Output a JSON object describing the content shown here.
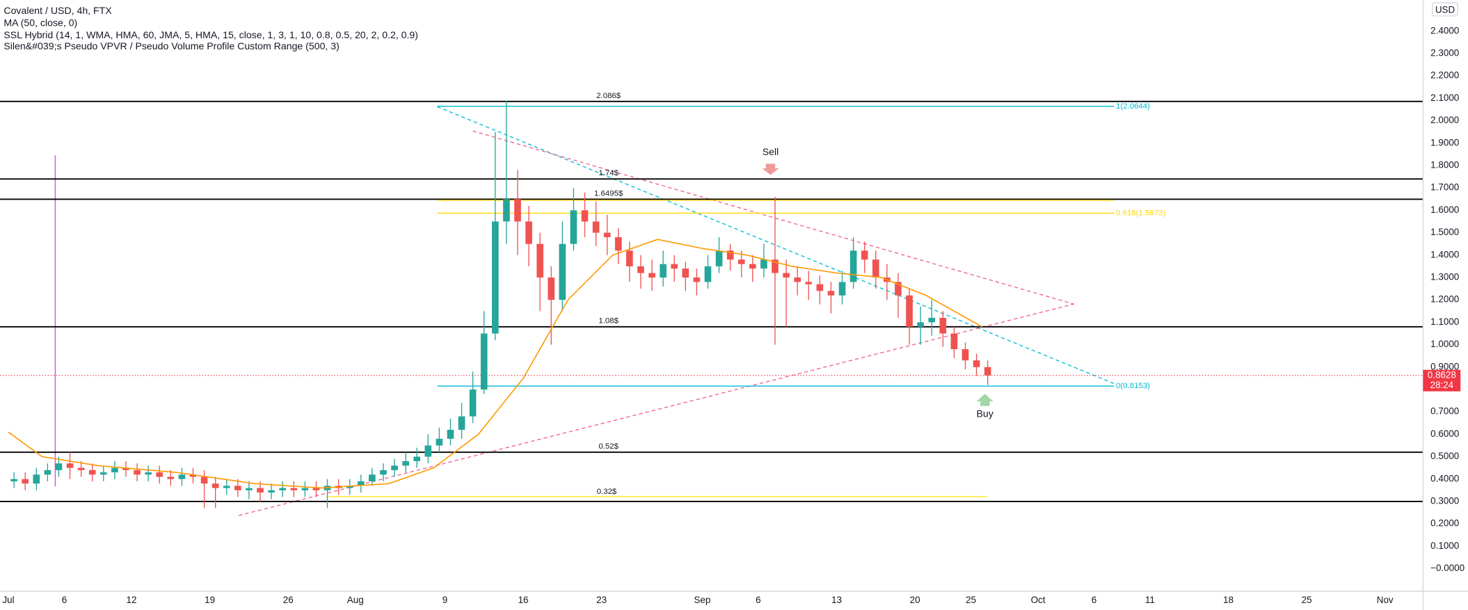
{
  "chart_data": {
    "type": "candlestick",
    "title": "Covalent / USD, 4h, FTX",
    "indicators": [
      "MA (50, close, 0)",
      "SSL Hybrid (14, 1, WMA, HMA, 60, JMA, 5, HMA, 15, close, 1, 3, 1, 10, 0.8, 0.5, 20, 2, 0.2, 0.9)",
      "Silen&#039;s Pseudo VPVR / Pseudo Volume Profile Custom Range (500, 3)"
    ],
    "currency": "USD",
    "up_color": "#26a69a",
    "down_color": "#ef5350",
    "x": [
      0.5,
      1.5,
      2.5,
      3.5,
      4.5,
      5.5,
      6.5,
      7.5,
      8.5,
      9.5,
      10.5,
      11.5,
      12.5,
      13.5,
      14.5,
      15.5,
      16.5,
      17.5,
      18.5,
      19.5,
      20.5,
      21.5,
      22.5,
      23.5,
      24.5,
      25.5,
      26.5,
      27.5,
      28.5,
      29.5,
      30.5,
      31.5,
      32.5,
      33.5,
      34.5,
      35.5,
      36.5,
      37.5,
      38.5,
      39.5,
      40.5,
      41.5,
      42.5,
      43.5,
      44.5,
      45.5,
      46.5,
      47.5,
      48.5,
      49.5,
      50.5,
      51.5,
      52.5,
      53.5,
      54.5,
      55.5,
      56.5,
      57.5,
      58.5,
      59.5,
      60.5,
      61.5,
      62.5,
      63.5,
      64.5,
      65.5,
      66.5,
      67.5,
      68.5,
      69.5,
      70.5,
      71.5,
      72.5,
      73.5,
      74.5,
      75.5,
      76.5,
      77.5,
      78.5,
      79.5,
      80.5,
      81.5,
      82.5,
      83.5,
      84.5,
      85.5,
      86.5,
      87.5
    ],
    "open": [
      0.39,
      0.4,
      0.38,
      0.42,
      0.44,
      0.47,
      0.45,
      0.44,
      0.42,
      0.43,
      0.45,
      0.44,
      0.42,
      0.43,
      0.41,
      0.4,
      0.42,
      0.41,
      0.38,
      0.36,
      0.37,
      0.35,
      0.36,
      0.34,
      0.35,
      0.36,
      0.35,
      0.36,
      0.35,
      0.37,
      0.36,
      0.37,
      0.39,
      0.42,
      0.44,
      0.46,
      0.48,
      0.5,
      0.55,
      0.58,
      0.62,
      0.68,
      0.8,
      1.05,
      1.55,
      1.65,
      1.55,
      1.45,
      1.3,
      1.2,
      1.45,
      1.6,
      1.55,
      1.5,
      1.48,
      1.42,
      1.35,
      1.32,
      1.3,
      1.36,
      1.34,
      1.3,
      1.28,
      1.35,
      1.42,
      1.38,
      1.36,
      1.34,
      1.38,
      1.32,
      1.3,
      1.28,
      1.27,
      1.24,
      1.22,
      1.28,
      1.42,
      1.38,
      1.3,
      1.28,
      1.22,
      1.08,
      1.1,
      1.12,
      1.05,
      0.98,
      0.93,
      0.9
    ],
    "high": [
      0.43,
      0.43,
      0.45,
      0.47,
      0.5,
      0.52,
      0.48,
      0.47,
      0.46,
      0.48,
      0.48,
      0.47,
      0.46,
      0.46,
      0.44,
      0.45,
      0.45,
      0.44,
      0.41,
      0.4,
      0.4,
      0.39,
      0.39,
      0.38,
      0.39,
      0.39,
      0.39,
      0.39,
      0.4,
      0.4,
      0.4,
      0.42,
      0.45,
      0.47,
      0.49,
      0.52,
      0.54,
      0.6,
      0.63,
      0.67,
      0.74,
      0.88,
      1.15,
      1.95,
      2.09,
      1.78,
      1.62,
      1.5,
      1.35,
      1.55,
      1.7,
      1.68,
      1.64,
      1.58,
      1.52,
      1.46,
      1.4,
      1.38,
      1.42,
      1.4,
      1.37,
      1.34,
      1.4,
      1.48,
      1.45,
      1.42,
      1.4,
      1.45,
      1.66,
      1.38,
      1.35,
      1.33,
      1.31,
      1.28,
      1.33,
      1.48,
      1.46,
      1.42,
      1.36,
      1.32,
      1.25,
      1.17,
      1.2,
      1.15,
      1.08,
      1.01,
      0.96,
      0.93
    ],
    "low": [
      0.36,
      0.35,
      0.35,
      0.39,
      0.41,
      0.4,
      0.41,
      0.39,
      0.39,
      0.4,
      0.41,
      0.39,
      0.39,
      0.38,
      0.37,
      0.37,
      0.38,
      0.27,
      0.27,
      0.33,
      0.32,
      0.31,
      0.3,
      0.31,
      0.32,
      0.32,
      0.32,
      0.32,
      0.27,
      0.33,
      0.33,
      0.34,
      0.37,
      0.39,
      0.41,
      0.43,
      0.45,
      0.47,
      0.52,
      0.55,
      0.58,
      0.65,
      0.78,
      1.02,
      1.45,
      1.4,
      1.35,
      1.15,
      1.0,
      1.15,
      1.42,
      1.48,
      1.44,
      1.4,
      1.36,
      1.28,
      1.25,
      1.24,
      1.26,
      1.28,
      1.24,
      1.22,
      1.25,
      1.32,
      1.33,
      1.3,
      1.28,
      1.3,
      1.0,
      1.08,
      1.22,
      1.2,
      1.18,
      1.14,
      1.18,
      1.25,
      1.32,
      1.25,
      1.2,
      1.12,
      1.0,
      1.0,
      1.04,
      0.99,
      0.94,
      0.89,
      0.86,
      0.82
    ],
    "close": [
      0.4,
      0.38,
      0.42,
      0.44,
      0.47,
      0.45,
      0.44,
      0.42,
      0.43,
      0.45,
      0.44,
      0.42,
      0.43,
      0.41,
      0.4,
      0.42,
      0.41,
      0.38,
      0.36,
      0.37,
      0.35,
      0.36,
      0.34,
      0.35,
      0.36,
      0.35,
      0.36,
      0.35,
      0.37,
      0.36,
      0.37,
      0.39,
      0.42,
      0.44,
      0.46,
      0.48,
      0.5,
      0.55,
      0.58,
      0.62,
      0.68,
      0.8,
      1.05,
      1.55,
      1.65,
      1.55,
      1.45,
      1.3,
      1.2,
      1.45,
      1.6,
      1.55,
      1.5,
      1.48,
      1.42,
      1.35,
      1.32,
      1.3,
      1.36,
      1.34,
      1.3,
      1.28,
      1.35,
      1.42,
      1.38,
      1.36,
      1.34,
      1.38,
      1.32,
      1.3,
      1.28,
      1.27,
      1.24,
      1.22,
      1.28,
      1.42,
      1.38,
      1.3,
      1.28,
      1.22,
      1.08,
      1.1,
      1.12,
      1.05,
      0.98,
      0.93,
      0.9,
      0.8628
    ],
    "ma": {
      "color": "#ff9800",
      "x": [
        0,
        3,
        8,
        15,
        22,
        28,
        34,
        38,
        42,
        46,
        50,
        54,
        58,
        62,
        66,
        70,
        74,
        78,
        82,
        87
      ],
      "values": [
        0.61,
        0.5,
        0.46,
        0.43,
        0.38,
        0.36,
        0.38,
        0.45,
        0.6,
        0.85,
        1.2,
        1.4,
        1.47,
        1.43,
        1.4,
        1.35,
        1.32,
        1.3,
        1.22,
        1.08
      ]
    },
    "levels": [
      {
        "value": 2.086,
        "label": "2.086$"
      },
      {
        "value": 1.74,
        "label": "1.74$"
      },
      {
        "value": 1.6495,
        "label": "1.6495$"
      },
      {
        "value": 1.08,
        "label": "1.08$"
      },
      {
        "value": 0.52,
        "label": "0.52$"
      },
      {
        "value": 0.3
      }
    ],
    "level_color": "#000000",
    "support": {
      "value": 0.322,
      "label": "0.32$",
      "color": "#ffeb3b"
    },
    "fib": [
      {
        "value": 2.0644,
        "label": "1(2.0644)",
        "color": "#00bcd4"
      },
      {
        "value": 1.645,
        "color": "#ffd600"
      },
      {
        "value": 1.5873,
        "label": "0.618(1.5873)",
        "color": "#ffd600"
      },
      {
        "value": 0.8153,
        "label": "0(0.8153)",
        "color": "#00bcd4"
      }
    ],
    "annotations": [
      "Sell",
      "Buy"
    ],
    "last_price": {
      "value": 0.8628,
      "countdown": "28:24",
      "color": "#f23645"
    },
    "xlim": [
      -0.75,
      126.4
    ],
    "ylim": [
      -0.101,
      2.539
    ],
    "xticks": [
      {
        "value": 0,
        "label": "Jul"
      },
      {
        "value": 5,
        "label": "6"
      },
      {
        "value": 11,
        "label": "12"
      },
      {
        "value": 18,
        "label": "19"
      },
      {
        "value": 25,
        "label": "26"
      },
      {
        "value": 31,
        "label": "Aug"
      },
      {
        "value": 39,
        "label": "9"
      },
      {
        "value": 46,
        "label": "16"
      },
      {
        "value": 53,
        "label": "23"
      },
      {
        "value": 62,
        "label": "Sep"
      },
      {
        "value": 67,
        "label": "6"
      },
      {
        "value": 74,
        "label": "13"
      },
      {
        "value": 81,
        "label": "20"
      },
      {
        "value": 86,
        "label": "25"
      },
      {
        "value": 92,
        "label": "Oct"
      },
      {
        "value": 97,
        "label": "6"
      },
      {
        "value": 102,
        "label": "11"
      },
      {
        "value": 109,
        "label": "18"
      },
      {
        "value": 116,
        "label": "25"
      },
      {
        "value": 123,
        "label": "Nov"
      }
    ],
    "yticks": [
      {
        "value": 2.4,
        "label": "2.4000"
      },
      {
        "value": 2.3,
        "label": "2.3000"
      },
      {
        "value": 2.2,
        "label": "2.2000"
      },
      {
        "value": 2.1,
        "label": "2.1000"
      },
      {
        "value": 2.0,
        "label": "2.0000"
      },
      {
        "value": 1.9,
        "label": "1.9000"
      },
      {
        "value": 1.8,
        "label": "1.8000"
      },
      {
        "value": 1.7,
        "label": "1.7000"
      },
      {
        "value": 1.6,
        "label": "1.6000"
      },
      {
        "value": 1.5,
        "label": "1.5000"
      },
      {
        "value": 1.4,
        "label": "1.4000"
      },
      {
        "value": 1.3,
        "label": "1.3000"
      },
      {
        "value": 1.2,
        "label": "1.2000"
      },
      {
        "value": 1.1,
        "label": "1.1000"
      },
      {
        "value": 1.0,
        "label": "1.0000"
      },
      {
        "value": 0.9,
        "label": "0.9000"
      },
      {
        "value": 0.7,
        "label": "0.7000"
      },
      {
        "value": 0.6,
        "label": "0.6000"
      },
      {
        "value": 0.5,
        "label": "0.5000"
      },
      {
        "value": 0.4,
        "label": "0.4000"
      },
      {
        "value": 0.3,
        "label": "0.3000"
      },
      {
        "value": 0.2,
        "label": "0.2000"
      },
      {
        "value": 0.1,
        "label": "0.1000"
      },
      {
        "value": 0,
        "label": "−0.0000"
      }
    ]
  }
}
